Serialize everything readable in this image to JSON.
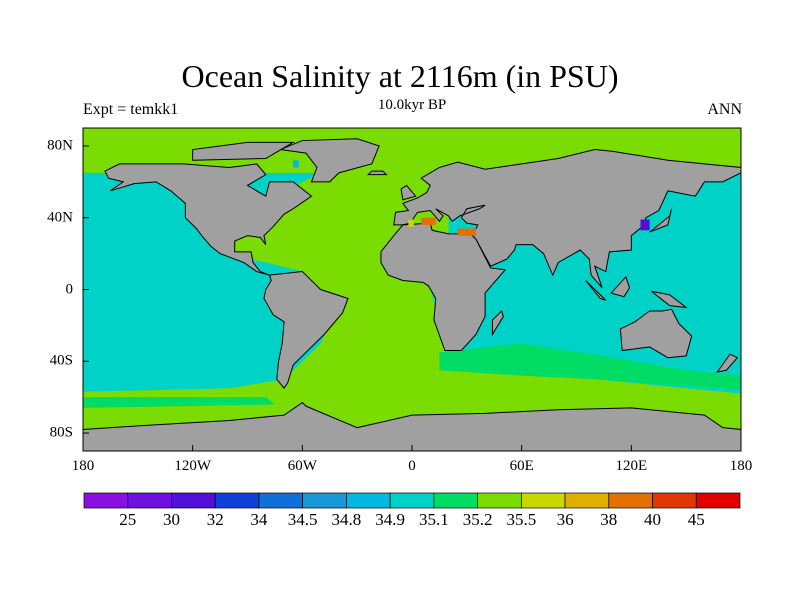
{
  "title": "Ocean Salinity at 2116m (in PSU)",
  "subtitle": "10.0kyr BP",
  "left_label": "Expt = temkk1",
  "right_label": "ANN",
  "lat_labels": [
    "80N",
    "40N",
    "0",
    "40S",
    "80S"
  ],
  "lon_labels": [
    "180",
    "120W",
    "60W",
    "0",
    "60E",
    "120E",
    "180"
  ],
  "colorbar": {
    "labels": [
      "25",
      "30",
      "32",
      "34",
      "34.5",
      "34.8",
      "34.9",
      "35.1",
      "35.2",
      "35.5",
      "36",
      "38",
      "40",
      "45"
    ],
    "colors": [
      "#8a10e0",
      "#7010e0",
      "#5010d8",
      "#1040d8",
      "#1070d8",
      "#1898d8",
      "#00b8e0",
      "#00d2c8",
      "#00dc64",
      "#7adc00",
      "#c8d800",
      "#e0b000",
      "#e07000",
      "#e03800",
      "#e00000"
    ]
  },
  "colors": {
    "land": "#a0a0a0",
    "ocean_main": "#00d2c8",
    "ocean_atlantic": "#7adc00",
    "ocean_band": "#00dc64"
  }
}
